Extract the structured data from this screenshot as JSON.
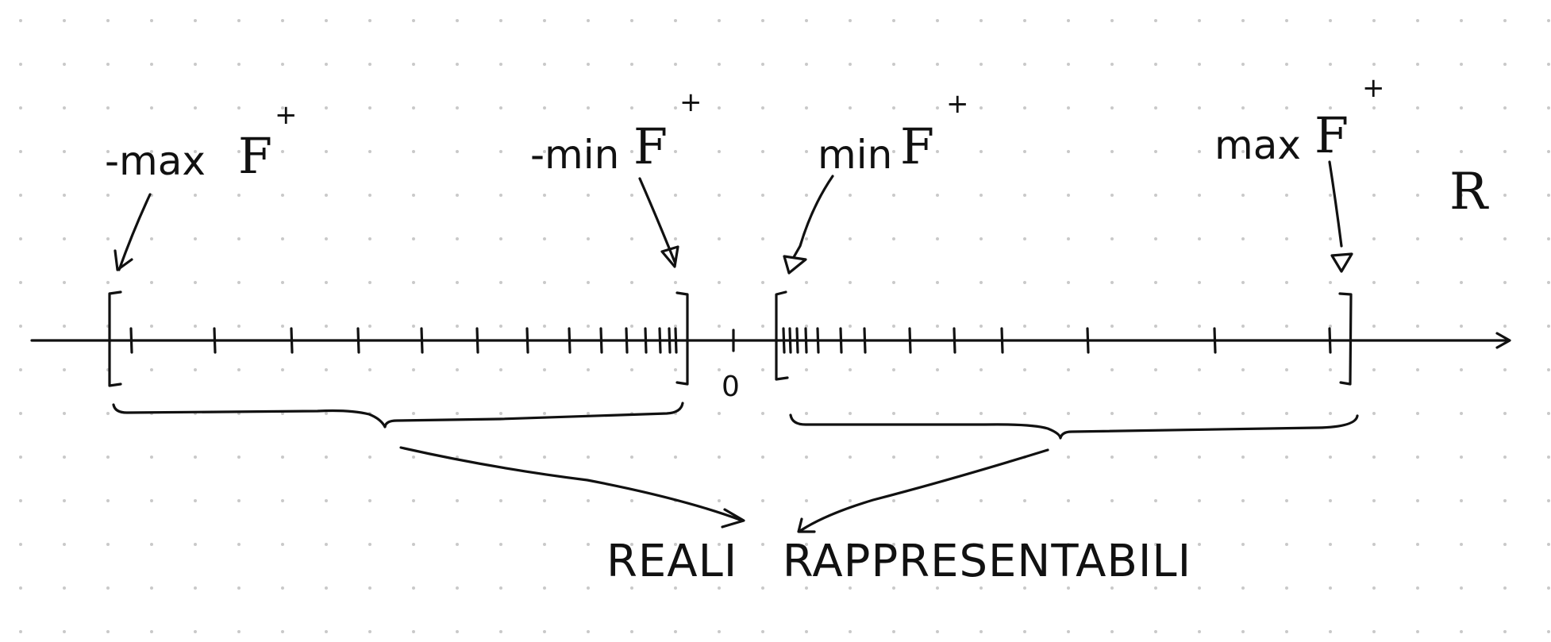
{
  "diagram": {
    "labels": {
      "neg_max": "-max",
      "neg_min": "-min",
      "pos_min": "min",
      "pos_max": "max",
      "set_symbol": "F",
      "set_superscript": "+",
      "reals_symbol": "R",
      "zero": "0",
      "caption": "REALI   RAPPRESENTABILI"
    },
    "colors": {
      "ink": "#111111",
      "dots": "#c9c9c9",
      "background": "#ffffff"
    }
  }
}
